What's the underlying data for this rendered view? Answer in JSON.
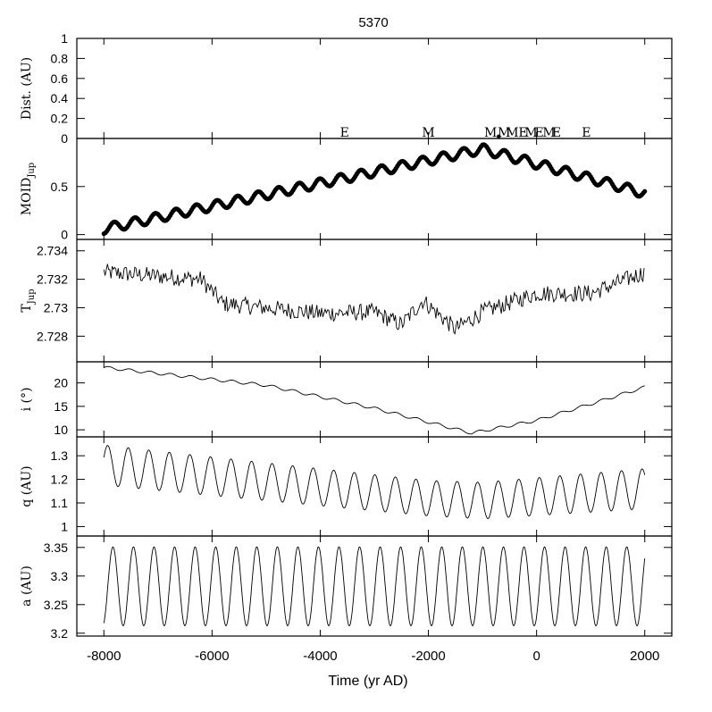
{
  "figure": {
    "title": "5370",
    "xlabel": "Time (yr AD)"
  },
  "chart_data": {
    "type": "line",
    "shared_x": {
      "label": "Time (yr AD)",
      "range": [
        -8500,
        2500
      ],
      "ticks": [
        -8000,
        -6000,
        -4000,
        -2000,
        0,
        2000
      ]
    },
    "panels": [
      {
        "id": "dist",
        "ylabel": "Dist. (AU)",
        "ylim": [
          0,
          1
        ],
        "ticks": [
          0,
          0.2,
          0.4,
          0.6,
          0.8,
          1
        ],
        "tick_labels": [
          "0",
          "0.2",
          "0.4",
          "0.6",
          "0.8",
          "1"
        ],
        "encounters": [
          {
            "label": "E",
            "x": -3550
          },
          {
            "label": "M",
            "x": -2000
          },
          {
            "label": "M",
            "x": -850
          },
          {
            "label": "M",
            "x": -600
          },
          {
            "label": "M",
            "x": -450
          },
          {
            "label": "E",
            "x": -250
          },
          {
            "label": "M",
            "x": -100
          },
          {
            "label": "E",
            "x": 50
          },
          {
            "label": "M",
            "x": 230
          },
          {
            "label": "E",
            "x": 370
          },
          {
            "label": "E",
            "x": 920
          }
        ],
        "points": [
          {
            "x": -700,
            "y": 0.02
          }
        ]
      },
      {
        "id": "moid",
        "ylabel": "MOID",
        "ylabel_sub": "Jup",
        "ylim": [
          -0.05,
          1.0
        ],
        "ticks": [
          0,
          0.5
        ],
        "tick_labels": [
          "0",
          "0.5"
        ],
        "style": "dots",
        "model": {
          "trend_knots": [
            [
              -8000,
              0.06
            ],
            [
              -1000,
              0.89
            ],
            [
              2000,
              0.43
            ]
          ],
          "osc_amp": 0.05,
          "period_yr": 380
        }
      },
      {
        "id": "tjup",
        "ylabel": "T",
        "ylabel_sub": "Jup",
        "ylim": [
          2.7262,
          2.7348
        ],
        "ticks": [
          2.728,
          2.73,
          2.732,
          2.734
        ],
        "tick_labels": [
          "2.728",
          "2.73",
          "2.732",
          "2.734"
        ],
        "style": "noisy-line",
        "model": {
          "trend_knots": [
            [
              -8000,
              2.7325
            ],
            [
              -6200,
              2.732
            ],
            [
              -5800,
              2.7303
            ],
            [
              -4000,
              2.7296
            ],
            [
              -3000,
              2.7297
            ],
            [
              -2500,
              2.7288
            ],
            [
              -2100,
              2.7305
            ],
            [
              -1500,
              2.7285
            ],
            [
              -1000,
              2.7297
            ],
            [
              0,
              2.731
            ],
            [
              1000,
              2.731
            ],
            [
              2000,
              2.7325
            ]
          ],
          "noise": 0.0006
        }
      },
      {
        "id": "incl",
        "ylabel": "i (°)",
        "ylim": [
          8.5,
          24.5
        ],
        "ticks": [
          10,
          15,
          20
        ],
        "tick_labels": [
          "10",
          "15",
          "20"
        ],
        "style": "line",
        "model": {
          "trend_knots": [
            [
              -8000,
              23.3
            ],
            [
              -5000,
              19.5
            ],
            [
              -3000,
              14.6
            ],
            [
              -1200,
              9.3
            ],
            [
              0,
              12.0
            ],
            [
              1000,
              15.5
            ],
            [
              2000,
              19.1
            ]
          ],
          "wiggle": 0.3
        }
      },
      {
        "id": "q",
        "ylabel": "q (AU)",
        "ylim": [
          0.96,
          1.38
        ],
        "ticks": [
          1,
          1.1,
          1.2,
          1.3
        ],
        "tick_labels": [
          "1",
          "1.1",
          "1.2",
          "1.3"
        ],
        "style": "line",
        "model": {
          "mean_knots": [
            [
              -8000,
              1.26
            ],
            [
              -2000,
              1.12
            ],
            [
              -1000,
              1.11
            ],
            [
              2000,
              1.16
            ]
          ],
          "amp_knots": [
            [
              -8000,
              0.085
            ],
            [
              -2000,
              0.075
            ],
            [
              2000,
              0.085
            ]
          ],
          "period_yr": 380
        }
      },
      {
        "id": "a",
        "ylabel": "a (AU)",
        "ylim": [
          3.195,
          3.37
        ],
        "ticks": [
          3.2,
          3.25,
          3.3,
          3.35
        ],
        "tick_labels": [
          "3.2",
          "3.25",
          "3.3",
          "3.35"
        ],
        "style": "line",
        "model": {
          "mean": 3.282,
          "amp": 0.069,
          "period_yr": 380
        }
      }
    ]
  }
}
